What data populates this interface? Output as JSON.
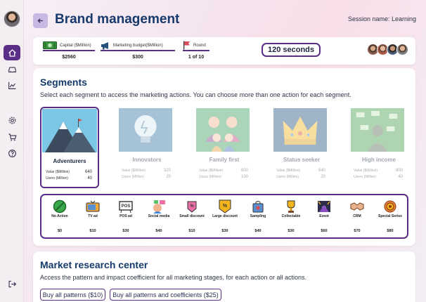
{
  "header": {
    "title": "Brand management",
    "session": "Session name: Learning"
  },
  "stats": {
    "capital_label": "Capital ($Million)",
    "capital_value": "$2560",
    "budget_label": "Marketing budget($Million)",
    "budget_value": "$300",
    "round_label": "Round",
    "round_value": "1 of 10",
    "timer": "120 seconds"
  },
  "segments_section": {
    "title": "Segments",
    "subtitle": "Select each segment to access the marketing actions. You can choose more than one action for each segment.",
    "value_label": "Value ($Million)",
    "users_label": "Users (Million)",
    "items": [
      {
        "name": "Adventurers",
        "value": "640",
        "users": "40",
        "selected": true
      },
      {
        "name": "Innovators",
        "value": "320",
        "users": "20",
        "selected": false
      },
      {
        "name": "Family first",
        "value": "600",
        "users": "100",
        "selected": false
      },
      {
        "name": "Status seeker",
        "value": "640",
        "users": "20",
        "selected": false
      },
      {
        "name": "High income",
        "value": "800",
        "users": "40",
        "selected": false
      }
    ]
  },
  "actions": [
    {
      "label": "No Action",
      "price": "$0",
      "icon": "no-action-icon"
    },
    {
      "label": "TV ad",
      "price": "$10",
      "icon": "tv-icon"
    },
    {
      "label": "POS ad",
      "price": "$30",
      "icon": "pos-icon"
    },
    {
      "label": "Social media",
      "price": "$40",
      "icon": "social-media-icon"
    },
    {
      "label": "Small discount",
      "price": "$10",
      "icon": "small-discount-icon"
    },
    {
      "label": "Large discount",
      "price": "$30",
      "icon": "large-discount-icon"
    },
    {
      "label": "Sampling",
      "price": "$40",
      "icon": "sampling-icon"
    },
    {
      "label": "Collectable",
      "price": "$30",
      "icon": "trophy-icon"
    },
    {
      "label": "Event",
      "price": "$60",
      "icon": "event-icon"
    },
    {
      "label": "CRM",
      "price": "$70",
      "icon": "handshake-icon"
    },
    {
      "label": "Special Series",
      "price": "$80",
      "icon": "badge-icon"
    }
  ],
  "market_research": {
    "title": "Market research center",
    "subtitle": "Access the pattern and impact coefficient for all marketing stages, for each action or all actions.",
    "buy_patterns": "Buy all patterns ($10)",
    "buy_patterns_coefficients": "Buy all patterns and coefficients ($25)"
  },
  "colors": {
    "accent": "#5a2d86",
    "title": "#17396b"
  }
}
